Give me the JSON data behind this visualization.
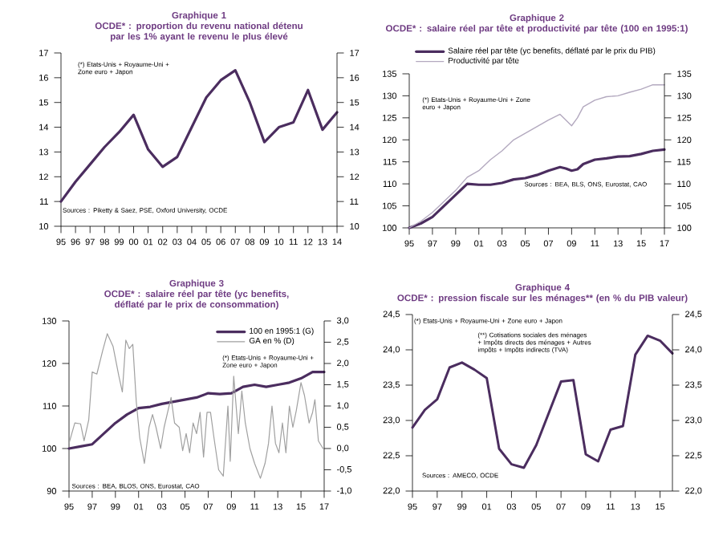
{
  "chart_data": [
    {
      "type": "line",
      "title": "Graphique 1",
      "subtitle": "OCDE* : proportion du revenu national détenu par les 1% ayant le revenu le plus élevé",
      "categories": [
        "95",
        "96",
        "97",
        "98",
        "99",
        "00",
        "01",
        "02",
        "03",
        "04",
        "05",
        "06",
        "07",
        "08",
        "09",
        "10",
        "11",
        "12",
        "13",
        "14"
      ],
      "series": [
        {
          "color": "#4b2d5f",
          "values": [
            11.0,
            11.8,
            12.5,
            13.2,
            13.8,
            14.5,
            13.1,
            12.4,
            12.8,
            14.0,
            15.2,
            15.9,
            16.3,
            15.0,
            13.4,
            14.0,
            14.2,
            15.5,
            13.9,
            14.6
          ]
        }
      ],
      "ylim": [
        10,
        17
      ],
      "yticks": [
        10,
        11,
        12,
        13,
        14,
        15,
        16,
        17
      ],
      "y2lim": [
        10,
        17
      ],
      "y2ticks": [
        10,
        11,
        12,
        13,
        14,
        15,
        16,
        17
      ],
      "annotations": [
        "(*) Etats-Unis + Royaume-Uni + Zone euro + Japon",
        "Sources : Piketty & Saez, PSE, Oxford University, OCDE"
      ]
    },
    {
      "type": "line",
      "title": "Graphique 2",
      "subtitle": "OCDE* : salaire réel par tête et productivité par tête (100 en 1995:1)",
      "series": [
        {
          "name": "Salaire réel par tête (yc benefits, déflaté par le prix du PIB)",
          "color": "#4b2d5f",
          "x": [
            1995,
            1996,
            1997,
            1998,
            1999,
            2000,
            2001,
            2002,
            2003,
            2004,
            2005,
            2006,
            2007,
            2008,
            2008.5,
            2009,
            2009.5,
            2010,
            2011,
            2012,
            2013,
            2014,
            2015,
            2016,
            2017
          ],
          "values": [
            100,
            101,
            102.5,
            105,
            107.5,
            110,
            109.8,
            109.8,
            110.2,
            111,
            111.3,
            112,
            113,
            113.8,
            113.5,
            113,
            113.3,
            114.5,
            115.5,
            115.8,
            116.2,
            116.3,
            116.8,
            117.5,
            117.8
          ]
        },
        {
          "name": "Productivité par tête",
          "color": "#b3a9bf",
          "x": [
            1995,
            1996,
            1997,
            1998,
            1999,
            2000,
            2001,
            2002,
            2003,
            2004,
            2005,
            2006,
            2007,
            2008,
            2008.5,
            2009,
            2009.5,
            2010,
            2011,
            2012,
            2013,
            2014,
            2015,
            2016,
            2017
          ],
          "values": [
            100,
            101.5,
            103.5,
            106,
            108.5,
            111.5,
            113,
            115.5,
            117.5,
            120,
            121.5,
            123,
            124.5,
            125.8,
            124.5,
            123.2,
            125,
            127.5,
            129,
            129.8,
            130,
            130.8,
            131.5,
            132.5,
            132.5
          ]
        }
      ],
      "xlim": [
        1995,
        2017
      ],
      "xticks": [
        {
          "value": 1995,
          "label": "95"
        },
        {
          "value": 1997,
          "label": "97"
        },
        {
          "value": 1999,
          "label": "99"
        },
        {
          "value": 2001,
          "label": "01"
        },
        {
          "value": 2003,
          "label": "03"
        },
        {
          "value": 2005,
          "label": "05"
        },
        {
          "value": 2007,
          "label": "07"
        },
        {
          "value": 2009,
          "label": "09"
        },
        {
          "value": 2011,
          "label": "11"
        },
        {
          "value": 2013,
          "label": "13"
        },
        {
          "value": 2015,
          "label": "15"
        },
        {
          "value": 2017,
          "label": "17"
        }
      ],
      "ylim": [
        100,
        135
      ],
      "yticks": [
        100,
        105,
        110,
        115,
        120,
        125,
        130,
        135
      ],
      "y2lim": [
        100,
        135
      ],
      "y2ticks": [
        100,
        105,
        110,
        115,
        120,
        125,
        130,
        135
      ],
      "legend": "top",
      "annotations": [
        "(*) Etats-Unis + Royaume-Uni + Zone euro + Japon",
        "Sources : BEA, BLS, ONS, Eurostat, CAO"
      ]
    },
    {
      "type": "line",
      "title": "Graphique 3",
      "subtitle": "OCDE* : salaire réel par tête (yc benefits, déflaté par le prix de consommation)",
      "series": [
        {
          "name": "100 en 1995:1 (G)",
          "color": "#4b2d5f",
          "x": [
            1995,
            1996,
            1997,
            1998,
            1999,
            2000,
            2001,
            2002,
            2003,
            2004,
            2005,
            2006,
            2007,
            2008,
            2009,
            2010,
            2011,
            2012,
            2013,
            2014,
            2015,
            2016,
            2017
          ],
          "values": [
            100,
            100.5,
            101,
            103.5,
            106,
            108,
            109.5,
            109.8,
            110.5,
            111,
            111.5,
            112,
            113,
            112.8,
            113,
            114.5,
            115,
            114.5,
            115,
            115.5,
            116.5,
            118,
            118
          ]
        },
        {
          "name": "GA en % (D)",
          "color": "#a0a0a0",
          "axis": "y2",
          "x": [
            1995,
            1995.5,
            1996,
            1996.3,
            1996.7,
            1997,
            1997.4,
            1997.9,
            1998.3,
            1998.8,
            1999.3,
            1999.6,
            1999.9,
            2000.2,
            2000.5,
            2000.8,
            2001.1,
            2001.5,
            2001.9,
            2002.2,
            2002.5,
            2002.9,
            2003.2,
            2003.5,
            2003.8,
            2004.1,
            2004.5,
            2004.8,
            2005.1,
            2005.4,
            2005.7,
            2006.0,
            2006.3,
            2006.6,
            2006.9,
            2007.2,
            2007.5,
            2007.9,
            2008.3,
            2008.7,
            2008.9,
            2009.2,
            2009.6,
            2009.9,
            2010.2,
            2010.6,
            2011.0,
            2011.5,
            2011.9,
            2012.2,
            2012.5,
            2012.8,
            2013.1,
            2013.4,
            2013.7,
            2014.0,
            2014.3,
            2014.6,
            2015.0,
            2015.3,
            2015.7,
            2016.0,
            2016.2,
            2016.5,
            2016.9
          ],
          "values": [
            0.12,
            0.6,
            0.58,
            0.18,
            0.67,
            1.8,
            1.75,
            2.3,
            2.7,
            2.4,
            1.7,
            1.33,
            2.55,
            2.35,
            2.45,
            1.1,
            0.25,
            -0.35,
            0.5,
            0.8,
            0.5,
            0.0,
            0.5,
            0.85,
            1.2,
            0.6,
            0.5,
            -0.05,
            0.35,
            -0.1,
            0.6,
            0.35,
            0.85,
            -0.2,
            0.85,
            0.85,
            0.25,
            -0.5,
            -0.65,
            1.0,
            -0.3,
            1.7,
            0.35,
            1.35,
            0.6,
            0.0,
            -0.35,
            -0.7,
            -0.35,
            0.12,
            1.0,
            0.12,
            -0.1,
            0.6,
            -0.1,
            1.0,
            0.5,
            0.9,
            1.55,
            1.25,
            0.6,
            0.85,
            1.15,
            0.18,
            0.0
          ]
        }
      ],
      "xlim": [
        1995,
        2017
      ],
      "xticks": [
        {
          "value": 1995,
          "label": "95"
        },
        {
          "value": 1997,
          "label": "97"
        },
        {
          "value": 1999,
          "label": "99"
        },
        {
          "value": 2001,
          "label": "01"
        },
        {
          "value": 2003,
          "label": "03"
        },
        {
          "value": 2005,
          "label": "05"
        },
        {
          "value": 2007,
          "label": "07"
        },
        {
          "value": 2009,
          "label": "09"
        },
        {
          "value": 2011,
          "label": "11"
        },
        {
          "value": 2013,
          "label": "13"
        },
        {
          "value": 2015,
          "label": "15"
        },
        {
          "value": 2017,
          "label": "17"
        }
      ],
      "ylim": [
        90,
        130
      ],
      "yticks": [
        90,
        100,
        110,
        120,
        130
      ],
      "y2lim": [
        -1,
        3
      ],
      "y2ticks": [
        {
          "value": -1,
          "label": "-1,0"
        },
        {
          "value": -0.5,
          "label": "-0,5"
        },
        {
          "value": 0,
          "label": "0,0"
        },
        {
          "value": 0.5,
          "label": "0,5"
        },
        {
          "value": 1,
          "label": "1,0"
        },
        {
          "value": 1.5,
          "label": "1,5"
        },
        {
          "value": 2,
          "label": "2,0"
        },
        {
          "value": 2.5,
          "label": "2,5"
        },
        {
          "value": 3,
          "label": "3,0"
        }
      ],
      "legend": "top right",
      "annotations": [
        "(*) Etats-Unis + Royaume-Uni + Zone euro + Japon",
        "Sources : BEA, BLOS, ONS, Eurostat, CAO"
      ]
    },
    {
      "type": "line",
      "title": "Graphique 4",
      "subtitle": "OCDE* : pression fiscale sur les ménages** (en % du PIB valeur)",
      "series": [
        {
          "color": "#4b2d5f",
          "x": [
            1995,
            1996,
            1997,
            1998,
            1999,
            2000,
            2001,
            2002,
            2003,
            2004,
            2005,
            2006,
            2007,
            2008,
            2009,
            2010,
            2011,
            2012,
            2013,
            2014,
            2015,
            2016
          ],
          "values": [
            22.9,
            23.15,
            23.3,
            23.75,
            23.82,
            23.72,
            23.6,
            22.6,
            22.38,
            22.33,
            22.65,
            23.1,
            23.55,
            23.57,
            22.52,
            22.42,
            22.87,
            22.92,
            23.93,
            24.2,
            24.13,
            23.95
          ]
        }
      ],
      "xlim": [
        1995,
        2016
      ],
      "xticks": [
        {
          "value": 1995,
          "label": "95"
        },
        {
          "value": 1997,
          "label": "97"
        },
        {
          "value": 1999,
          "label": "99"
        },
        {
          "value": 2001,
          "label": "01"
        },
        {
          "value": 2003,
          "label": "03"
        },
        {
          "value": 2005,
          "label": "05"
        },
        {
          "value": 2007,
          "label": "07"
        },
        {
          "value": 2009,
          "label": "09"
        },
        {
          "value": 2011,
          "label": "11"
        },
        {
          "value": 2013,
          "label": "13"
        },
        {
          "value": 2015,
          "label": "15"
        }
      ],
      "ylim": [
        22,
        24.5
      ],
      "yticks": [
        {
          "value": 22,
          "label": "22,0"
        },
        {
          "value": 22.5,
          "label": "22,5"
        },
        {
          "value": 23,
          "label": "23,0"
        },
        {
          "value": 23.5,
          "label": "23,5"
        },
        {
          "value": 24,
          "label": "24,0"
        },
        {
          "value": 24.5,
          "label": "24,5"
        }
      ],
      "y2lim": [
        22,
        24.5
      ],
      "y2ticks": [
        {
          "value": 22,
          "label": "22,0"
        },
        {
          "value": 22.5,
          "label": "22,5"
        },
        {
          "value": 23,
          "label": "23,0"
        },
        {
          "value": 23.5,
          "label": "23,5"
        },
        {
          "value": 24,
          "label": "24,0"
        },
        {
          "value": 24.5,
          "label": "24,5"
        }
      ],
      "annotations": [
        "(*) Etats-Unis + Royaume-Uni + Zone euro + Japon",
        "(**) Cotisations sociales des ménages + Impôts directs des ménages + Autres impôts + Impôts indirects (TVA)",
        "Sources : AMECO, OCDE"
      ]
    }
  ]
}
